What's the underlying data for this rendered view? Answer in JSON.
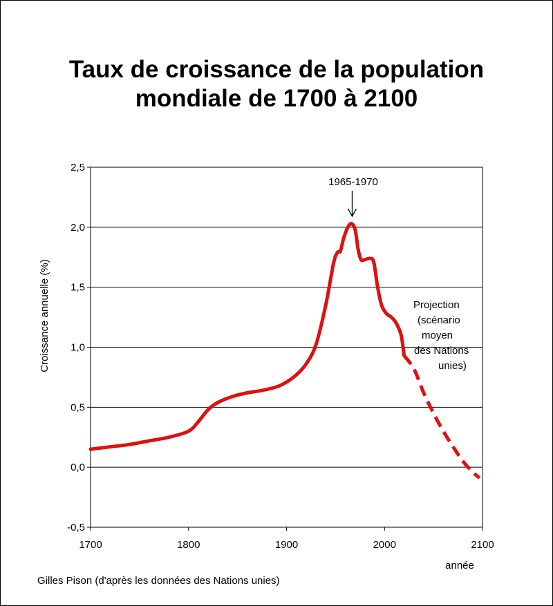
{
  "chart_data": {
    "type": "line",
    "title_lines": [
      "Taux de croissance de la population",
      "mondiale de 1700 à 2100"
    ],
    "xlabel": "année",
    "ylabel": "Croissance annuelle (%)",
    "xlim": [
      1700,
      2100
    ],
    "ylim": [
      -0.5,
      2.5
    ],
    "x_ticks": [
      "1700",
      "1800",
      "1900",
      "2000",
      "2100"
    ],
    "y_ticks": [
      "-0,5",
      "0,0",
      "0,5",
      "1,0",
      "1,5",
      "2,0",
      "2,5"
    ],
    "grid": "horizontal",
    "series": [
      {
        "style": "solid",
        "color": "#dd1111",
        "points": [
          [
            1700,
            0.15
          ],
          [
            1720,
            0.17
          ],
          [
            1740,
            0.19
          ],
          [
            1760,
            0.22
          ],
          [
            1780,
            0.25
          ],
          [
            1800,
            0.3
          ],
          [
            1810,
            0.38
          ],
          [
            1820,
            0.48
          ],
          [
            1830,
            0.54
          ],
          [
            1845,
            0.59
          ],
          [
            1860,
            0.62
          ],
          [
            1875,
            0.64
          ],
          [
            1890,
            0.67
          ],
          [
            1900,
            0.71
          ],
          [
            1910,
            0.77
          ],
          [
            1920,
            0.86
          ],
          [
            1930,
            1.02
          ],
          [
            1940,
            1.35
          ],
          [
            1948,
            1.7
          ],
          [
            1952,
            1.79
          ],
          [
            1955,
            1.8
          ],
          [
            1958,
            1.9
          ],
          [
            1962,
            1.99
          ],
          [
            1966,
            2.03
          ],
          [
            1970,
            1.98
          ],
          [
            1973,
            1.82
          ],
          [
            1976,
            1.73
          ],
          [
            1980,
            1.73
          ],
          [
            1985,
            1.74
          ],
          [
            1989,
            1.71
          ],
          [
            1993,
            1.5
          ],
          [
            1997,
            1.35
          ],
          [
            2002,
            1.28
          ],
          [
            2007,
            1.25
          ],
          [
            2012,
            1.2
          ],
          [
            2017,
            1.1
          ],
          [
            2020,
            0.93
          ]
        ]
      },
      {
        "style": "dashed",
        "color": "#dd1111",
        "points": [
          [
            2020,
            0.93
          ],
          [
            2030,
            0.82
          ],
          [
            2040,
            0.62
          ],
          [
            2050,
            0.45
          ],
          [
            2060,
            0.3
          ],
          [
            2070,
            0.17
          ],
          [
            2080,
            0.05
          ],
          [
            2090,
            -0.04
          ],
          [
            2097,
            -0.09
          ]
        ]
      }
    ],
    "annotations": {
      "peak_label": "1965-1970",
      "peak_x": 1967,
      "projection_lines": [
        "Projection",
        "(scénario",
        "moyen",
        "des Nations",
        "unies)"
      ]
    },
    "credit": "Gilles Pison (d'après les données des Nations unies)"
  }
}
